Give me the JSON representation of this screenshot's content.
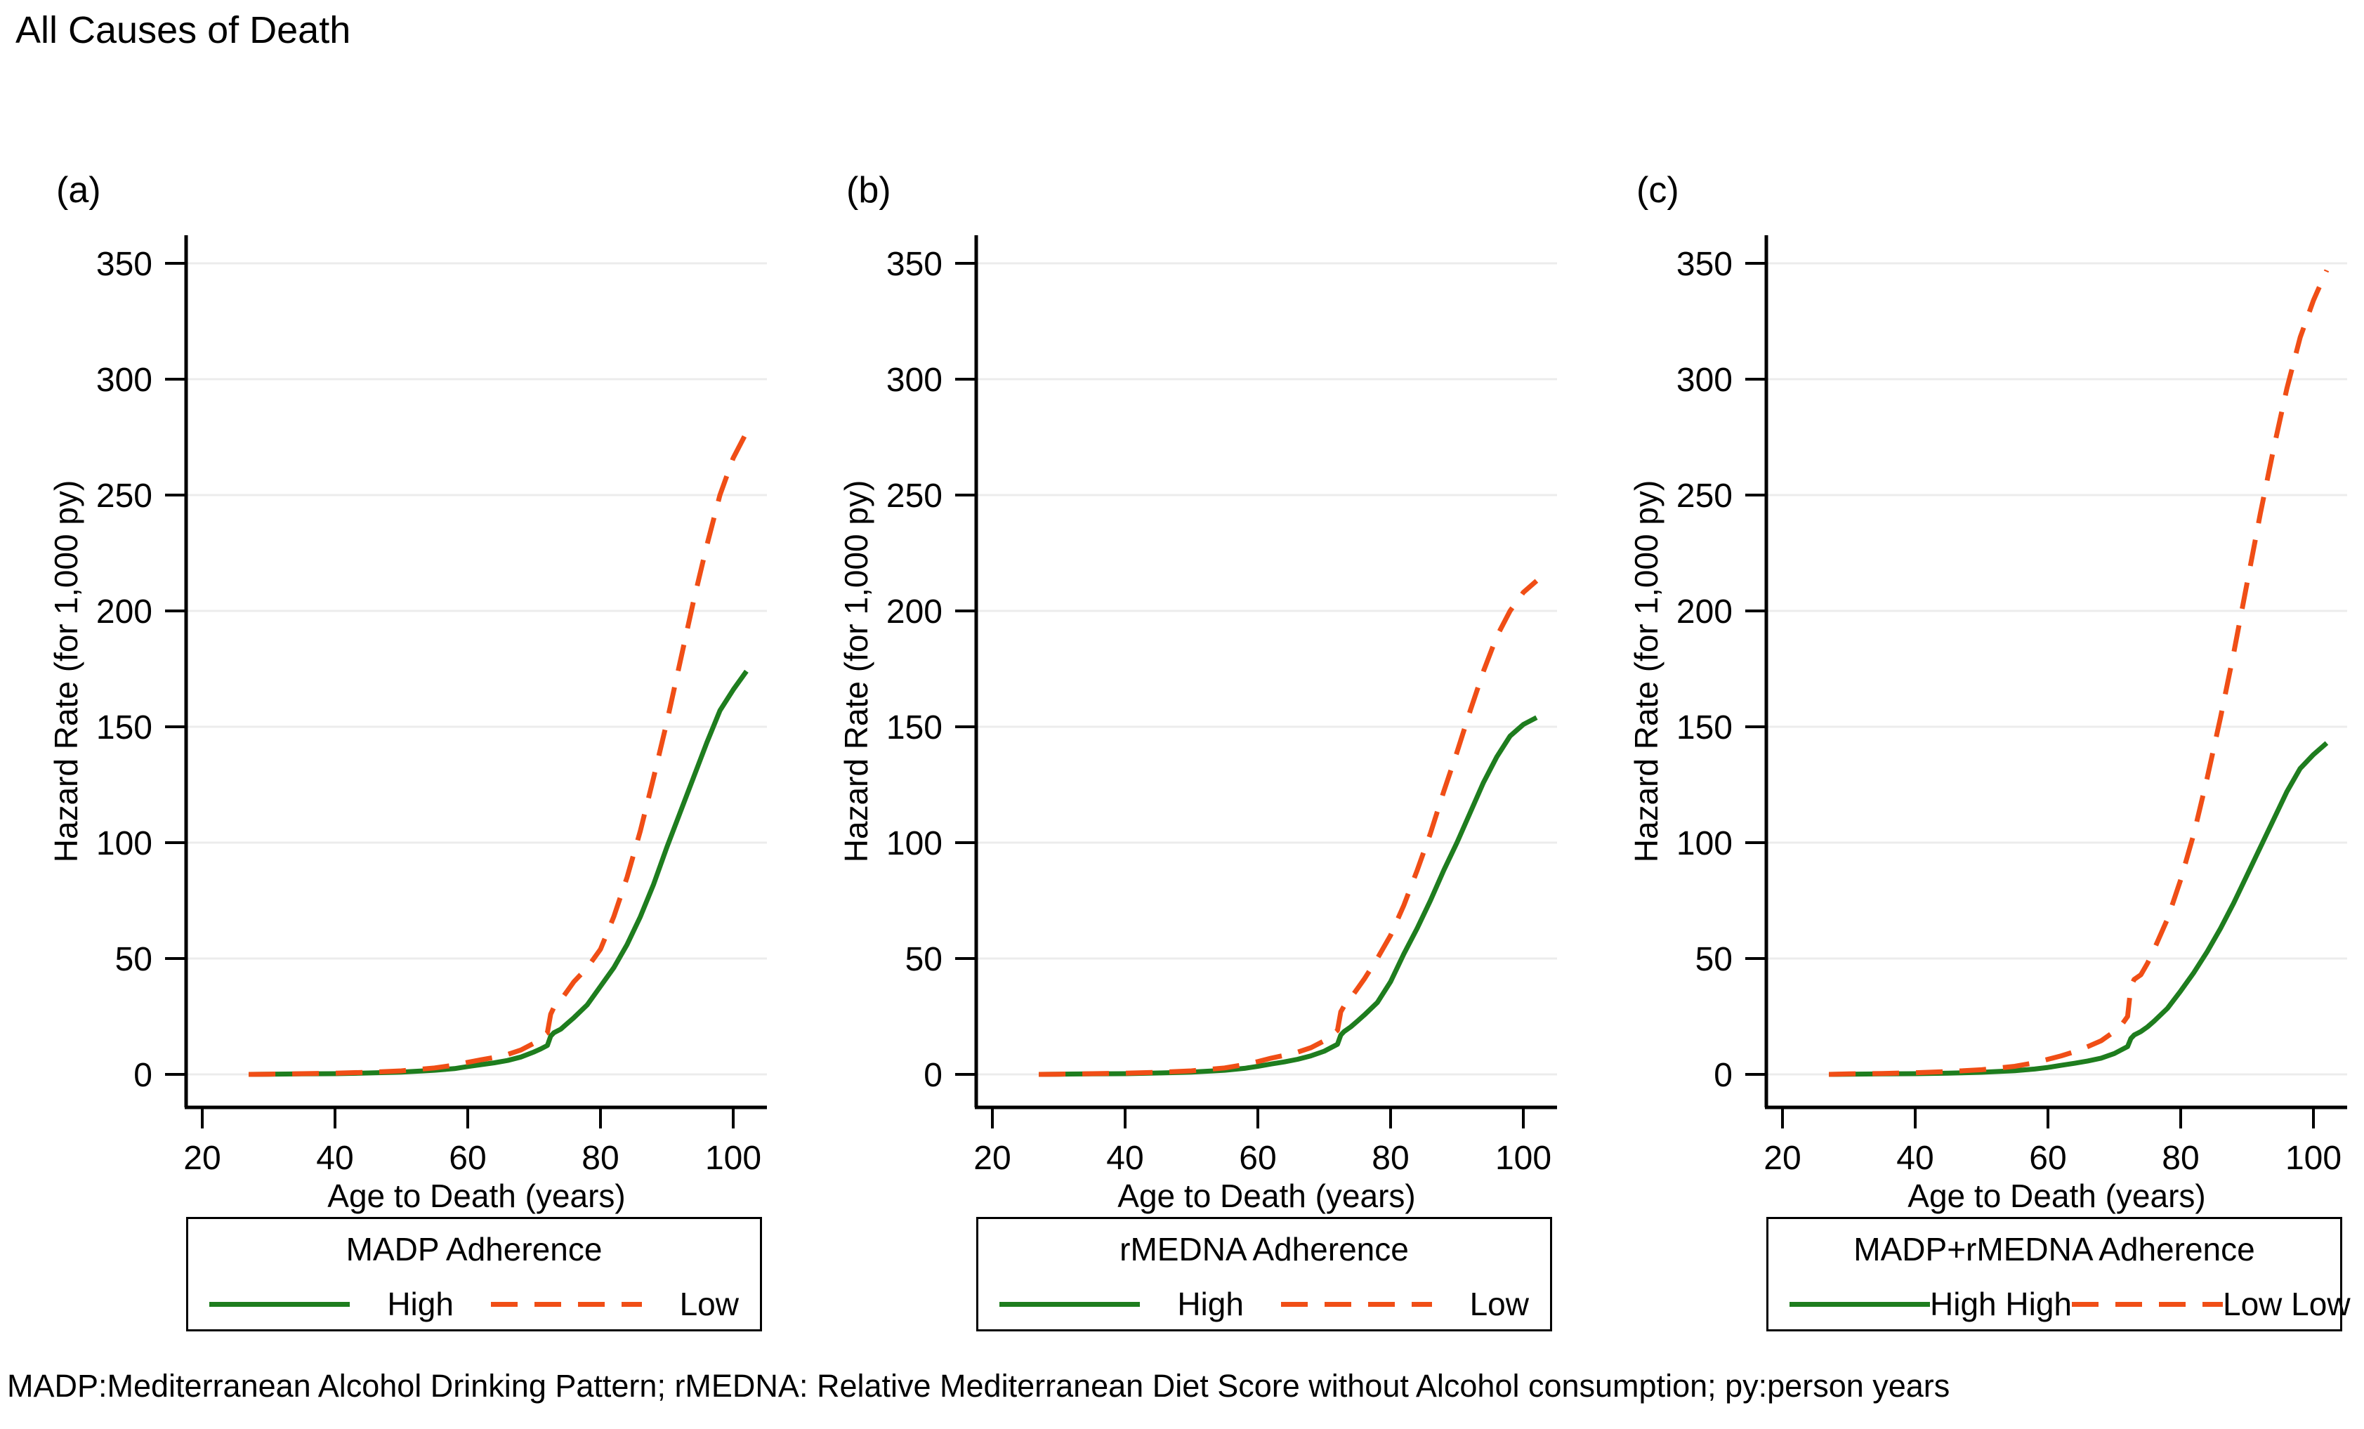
{
  "page": {
    "title": "All Causes of Death",
    "footnote": "MADP:Mediterranean Alcohol Drinking Pattern; rMEDNA: Relative Mediterranean Diet Score without Alcohol consumption; py:person years"
  },
  "colors": {
    "high": "#1e7d1e",
    "low": "#f04e16",
    "grid": "#ececec",
    "axis": "#000000"
  },
  "axes": {
    "x_label": "Age to Death (years)",
    "y_label": "Hazard Rate (for 1,000 py)",
    "x_ticks": [
      20,
      40,
      60,
      80,
      100
    ],
    "y_ticks": [
      0,
      50,
      100,
      150,
      200,
      250,
      300,
      350
    ],
    "x_range": [
      14,
      105
    ],
    "y_range": [
      0,
      365
    ],
    "grid": "horizontal-only",
    "legend_position": "below"
  },
  "chart_data": [
    {
      "panel_label": "(a)",
      "type": "line",
      "legend_title": "MADP Adherence",
      "ages": [
        27,
        30,
        35,
        40,
        45,
        50,
        55,
        58,
        60,
        62,
        64,
        66,
        68,
        70,
        71,
        72,
        72.5,
        73,
        74,
        75,
        76,
        78,
        80,
        82,
        84,
        86,
        88,
        90,
        92,
        94,
        96,
        98,
        100,
        102
      ],
      "series": [
        {
          "name": "High",
          "style": "solid",
          "color_key": "high",
          "values": [
            0,
            0.1,
            0.2,
            0.3,
            0.6,
            1,
            1.8,
            2.5,
            3.4,
            4.2,
            5,
            6,
            7.5,
            9.7,
            11,
            12.5,
            16.5,
            18,
            19.5,
            22,
            24.5,
            30,
            38,
            46,
            56,
            68,
            82,
            98,
            113,
            128,
            143,
            157,
            166,
            174
          ]
        },
        {
          "name": "Low",
          "style": "dashed",
          "color_key": "low",
          "values": [
            0,
            0.1,
            0.3,
            0.5,
            0.9,
            1.5,
            2.8,
            4,
            5.2,
            6.3,
            7.3,
            8.6,
            10.5,
            13.5,
            16,
            18,
            26,
            29,
            32,
            36,
            40,
            46,
            54,
            68,
            85,
            105,
            128,
            152,
            178,
            204,
            228,
            250,
            266,
            277
          ]
        }
      ]
    },
    {
      "panel_label": "(b)",
      "type": "line",
      "legend_title": "rMEDNA Adherence",
      "ages": [
        27,
        30,
        35,
        40,
        45,
        50,
        55,
        58,
        60,
        62,
        64,
        66,
        68,
        70,
        71,
        72,
        72.5,
        73,
        74,
        75,
        76,
        78,
        80,
        82,
        84,
        86,
        88,
        90,
        92,
        94,
        96,
        98,
        100,
        102
      ],
      "series": [
        {
          "name": "High",
          "style": "solid",
          "color_key": "high",
          "values": [
            0,
            0.1,
            0.2,
            0.3,
            0.6,
            1,
            1.8,
            2.6,
            3.5,
            4.5,
            5.4,
            6.5,
            8,
            10,
            11.5,
            13,
            17,
            18.5,
            20.5,
            23,
            25.5,
            31,
            40,
            52,
            63,
            75,
            88,
            100,
            113,
            126,
            137,
            146,
            151,
            154
          ]
        },
        {
          "name": "Low",
          "style": "dashed",
          "color_key": "low",
          "values": [
            0,
            0.1,
            0.3,
            0.5,
            0.9,
            1.5,
            2.8,
            4.2,
            5.5,
            7,
            8.2,
            9.6,
            11.5,
            14.5,
            16.5,
            19,
            27,
            29.5,
            33,
            37,
            41,
            50,
            60,
            73,
            88,
            104,
            122,
            139,
            157,
            174,
            189,
            200,
            208,
            213
          ]
        }
      ]
    },
    {
      "panel_label": "(c)",
      "type": "line",
      "legend_title": "MADP+rMEDNA Adherence",
      "ages": [
        27,
        30,
        35,
        40,
        45,
        50,
        55,
        58,
        60,
        62,
        64,
        66,
        68,
        70,
        71,
        72,
        72.5,
        73,
        74,
        75,
        76,
        78,
        80,
        82,
        84,
        86,
        88,
        90,
        92,
        94,
        96,
        98,
        100,
        102
      ],
      "series": [
        {
          "name": "High High",
          "style": "solid",
          "color_key": "high",
          "values": [
            0,
            0.1,
            0.2,
            0.3,
            0.5,
            0.9,
            1.6,
            2.3,
            3,
            3.9,
            4.8,
            5.8,
            7,
            9,
            10.5,
            12,
            15.5,
            17,
            18.5,
            20.5,
            23,
            28.5,
            36,
            44,
            53,
            63,
            74,
            86,
            98,
            110,
            122,
            132,
            138,
            143
          ]
        },
        {
          "name": "Low Low",
          "style": "dashed",
          "color_key": "low",
          "values": [
            0,
            0.2,
            0.4,
            0.7,
            1.2,
            2,
            3.5,
            5,
            6.5,
            8,
            9.8,
            12,
            14.5,
            18.5,
            21,
            25,
            38,
            41,
            43,
            48,
            54,
            67,
            84,
            104,
            128,
            154,
            182,
            212,
            242,
            270,
            296,
            318,
            334,
            347
          ]
        }
      ]
    }
  ]
}
